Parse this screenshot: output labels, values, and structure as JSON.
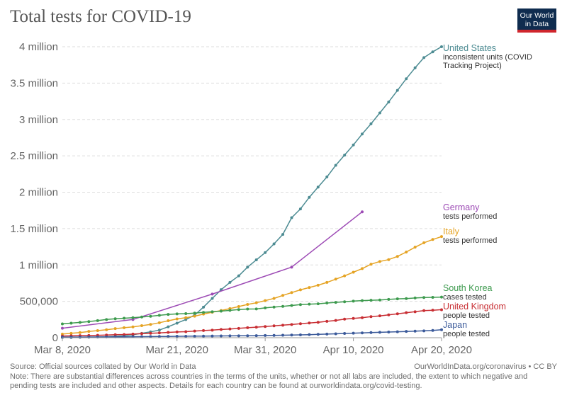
{
  "header": {
    "title": "Total tests for COVID-19",
    "logo_line1": "Our World",
    "logo_line2": "in Data"
  },
  "footer": {
    "source": "Source: Official sources collated by Our World in Data",
    "credit": "OurWorldInData.org/coronavirus • CC BY",
    "note": "Note: There are substantial differences across countries in the terms of the units, whether or not all labs are included, the extent to which negative and pending tests are included and other aspects. Details for each country can be found at ourworldindata.org/covid-testing."
  },
  "chart_data": {
    "type": "line",
    "title": "Total tests for COVID-19",
    "xlabel": "",
    "ylabel": "",
    "x_domain": [
      0,
      43
    ],
    "x_ticks": [
      {
        "day": 0,
        "label": "Mar 8, 2020"
      },
      {
        "day": 13,
        "label": "Mar 21, 2020"
      },
      {
        "day": 23,
        "label": "Mar 31, 2020"
      },
      {
        "day": 33,
        "label": "Apr 10, 2020"
      },
      {
        "day": 43,
        "label": "Apr 20, 2020"
      }
    ],
    "ylim": [
      0,
      4000000
    ],
    "y_ticks": [
      {
        "value": 0,
        "label": "0"
      },
      {
        "value": 500000,
        "label": "500,000"
      },
      {
        "value": 1000000,
        "label": "1 million"
      },
      {
        "value": 1500000,
        "label": "1.5 million"
      },
      {
        "value": 2000000,
        "label": "2 million"
      },
      {
        "value": 2500000,
        "label": "2.5 million"
      },
      {
        "value": 3000000,
        "label": "3 million"
      },
      {
        "value": 3500000,
        "label": "3.5 million"
      },
      {
        "value": 4000000,
        "label": "4 million"
      }
    ],
    "grid": true,
    "series": [
      {
        "name": "United States",
        "sublabel": "inconsistent units (COVID Tracking Project)",
        "sublabel_lines": [
          "inconsistent units (COVID",
          "Tracking Project)"
        ],
        "color": "#4c8b92",
        "days": [
          0,
          1,
          2,
          3,
          4,
          5,
          6,
          7,
          8,
          9,
          10,
          11,
          12,
          13,
          14,
          15,
          16,
          17,
          18,
          19,
          20,
          21,
          22,
          23,
          24,
          25,
          26,
          27,
          28,
          29,
          30,
          31,
          32,
          33,
          34,
          35,
          36,
          37,
          38,
          39,
          40,
          41,
          42,
          43
        ],
        "values": [
          2000,
          3000,
          5000,
          7000,
          10000,
          14000,
          20000,
          27000,
          40000,
          60000,
          80000,
          105000,
          150000,
          200000,
          250000,
          310000,
          420000,
          540000,
          660000,
          760000,
          850000,
          970000,
          1070000,
          1170000,
          1290000,
          1420000,
          1650000,
          1770000,
          1930000,
          2070000,
          2210000,
          2370000,
          2510000,
          2650000,
          2800000,
          2940000,
          3090000,
          3240000,
          3400000,
          3560000,
          3710000,
          3850000,
          3930000,
          4000000
        ]
      },
      {
        "name": "Germany",
        "sublabel": "tests performed",
        "sublabel_lines": [
          "tests performed"
        ],
        "color": "#9d4bb5",
        "days": [
          0,
          8,
          17,
          26,
          34
        ],
        "values": [
          130000,
          250000,
          600000,
          970000,
          1730000
        ]
      },
      {
        "name": "Italy",
        "sublabel": "tests performed",
        "sublabel_lines": [
          "tests performed"
        ],
        "color": "#e5a323",
        "days": [
          0,
          1,
          2,
          3,
          4,
          5,
          6,
          7,
          8,
          9,
          10,
          11,
          12,
          13,
          14,
          15,
          16,
          17,
          18,
          19,
          20,
          21,
          22,
          23,
          24,
          25,
          26,
          27,
          28,
          29,
          30,
          31,
          32,
          33,
          34,
          35,
          36,
          37,
          38,
          39,
          40,
          41,
          42,
          43
        ],
        "values": [
          50000,
          60000,
          70000,
          86000,
          97000,
          110000,
          125000,
          137000,
          148000,
          165000,
          182000,
          206000,
          233000,
          258000,
          275000,
          296000,
          325000,
          350000,
          374000,
          400000,
          428000,
          457000,
          480000,
          510000,
          540000,
          581000,
          620000,
          658000,
          690000,
          721000,
          760000,
          805000,
          850000,
          900000,
          950000,
          1010000,
          1048000,
          1073000,
          1117000,
          1178000,
          1244000,
          1305000,
          1350000,
          1390000
        ]
      },
      {
        "name": "South Korea",
        "sublabel": "cases tested",
        "sublabel_lines": [
          "cases tested"
        ],
        "color": "#3d9a4e",
        "days": [
          0,
          1,
          2,
          3,
          4,
          5,
          6,
          7,
          8,
          9,
          10,
          11,
          12,
          13,
          14,
          15,
          16,
          17,
          18,
          19,
          20,
          21,
          22,
          23,
          24,
          25,
          26,
          27,
          28,
          29,
          30,
          31,
          32,
          33,
          34,
          35,
          36,
          37,
          38,
          39,
          40,
          41,
          42,
          43
        ],
        "values": [
          190000,
          200000,
          210000,
          222000,
          235000,
          250000,
          260000,
          268000,
          275000,
          285000,
          295000,
          308000,
          320000,
          327000,
          331000,
          338000,
          348000,
          357000,
          365000,
          376000,
          387000,
          394000,
          395000,
          410000,
          421000,
          431000,
          443000,
          455000,
          461000,
          466000,
          477000,
          486000,
          494000,
          503000,
          510000,
          515000,
          518000,
          527000,
          534000,
          538000,
          546000,
          552000,
          555000,
          559000
        ]
      },
      {
        "name": "United Kingdom",
        "sublabel": "people tested",
        "sublabel_lines": [
          "people tested"
        ],
        "color": "#c82e33",
        "days": [
          0,
          1,
          2,
          3,
          4,
          5,
          6,
          7,
          8,
          9,
          10,
          11,
          12,
          13,
          14,
          15,
          16,
          17,
          18,
          19,
          20,
          21,
          22,
          23,
          24,
          25,
          26,
          27,
          28,
          29,
          30,
          31,
          32,
          33,
          34,
          35,
          36,
          37,
          38,
          39,
          40,
          41,
          42,
          43
        ],
        "values": [
          23000,
          25000,
          28000,
          30000,
          33000,
          37000,
          41000,
          44000,
          50000,
          56000,
          61000,
          66000,
          73000,
          79000,
          83000,
          91000,
          98000,
          104000,
          113000,
          120000,
          128000,
          137000,
          145000,
          153000,
          163000,
          172000,
          181000,
          192000,
          202000,
          212000,
          225000,
          237000,
          255000,
          265000,
          275000,
          290000,
          300000,
          314000,
          328000,
          344000,
          357000,
          372000,
          378000,
          385000
        ]
      },
      {
        "name": "Japan",
        "sublabel": "people tested",
        "sublabel_lines": [
          "people tested"
        ],
        "color": "#3b5a9a",
        "days": [
          0,
          1,
          2,
          3,
          4,
          5,
          6,
          7,
          8,
          9,
          10,
          11,
          12,
          13,
          14,
          15,
          16,
          17,
          18,
          19,
          20,
          21,
          22,
          23,
          24,
          25,
          26,
          27,
          28,
          29,
          30,
          31,
          32,
          33,
          34,
          35,
          36,
          37,
          38,
          39,
          40,
          41,
          42,
          43
        ],
        "values": [
          8000,
          8500,
          9000,
          9500,
          10000,
          11000,
          12000,
          13000,
          14000,
          15000,
          16000,
          17000,
          18000,
          19000,
          20000,
          21000,
          22000,
          23000,
          24000,
          25000,
          26000,
          27000,
          28000,
          30000,
          32000,
          34000,
          36000,
          39000,
          42000,
          46000,
          50000,
          54000,
          58000,
          62000,
          66000,
          70000,
          74000,
          78000,
          82000,
          86000,
          90000,
          94000,
          100000,
          110000
        ]
      }
    ]
  }
}
